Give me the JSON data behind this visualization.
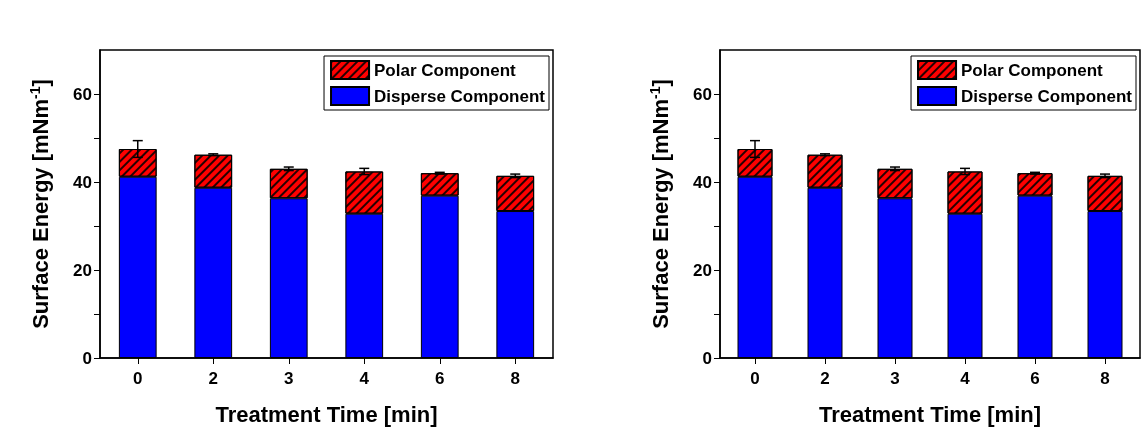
{
  "chart_data": [
    {
      "type": "bar",
      "stacked": true,
      "xlabel": "Treatment Time [min]",
      "ylabel": "Surface Energy [mNm$^{-1}$]",
      "categories": [
        "0",
        "2",
        "3",
        "4",
        "6",
        "8"
      ],
      "ylim": [
        0,
        70
      ],
      "yticks": [
        0,
        {
          "value": 10,
          "label": null
        },
        20,
        {
          "value": 30,
          "label": null
        },
        40,
        {
          "value": 50,
          "label": null
        },
        60
      ],
      "legend": "top right",
      "grid": false,
      "series": [
        {
          "name": "Disperse Component",
          "color": "#0000ff",
          "values": [
            41.2,
            38.7,
            36.3,
            32.8,
            36.9,
            33.4
          ]
        },
        {
          "name": "Polar Component",
          "color": "#ff0000",
          "values": [
            6.3,
            7.5,
            6.7,
            9.6,
            5.1,
            8.0
          ],
          "errors": [
            1.9,
            0.2,
            0.4,
            0.7,
            0.2,
            0.4
          ]
        }
      ]
    },
    {
      "type": "bar",
      "stacked": true,
      "xlabel": "Treatment Time [min]",
      "ylabel": "Surface Energy [mNm$^{-1}$]",
      "categories": [
        "0",
        "2",
        "3",
        "4",
        "6",
        "8"
      ],
      "ylim": [
        0,
        70
      ],
      "yticks": [
        0,
        {
          "value": 10,
          "label": null
        },
        20,
        {
          "value": 30,
          "label": null
        },
        40,
        {
          "value": 50,
          "label": null
        },
        60
      ],
      "legend": "top right",
      "grid": false,
      "series": [
        {
          "name": "Disperse Component",
          "color": "#0000ff",
          "values": [
            41.2,
            38.7,
            36.3,
            32.8,
            36.9,
            33.4
          ]
        },
        {
          "name": "Polar Component",
          "color": "#ff0000",
          "values": [
            6.3,
            7.5,
            6.7,
            9.6,
            5.1,
            8.0
          ],
          "errors": [
            1.9,
            0.2,
            0.4,
            0.7,
            0.2,
            0.4
          ]
        }
      ]
    }
  ]
}
